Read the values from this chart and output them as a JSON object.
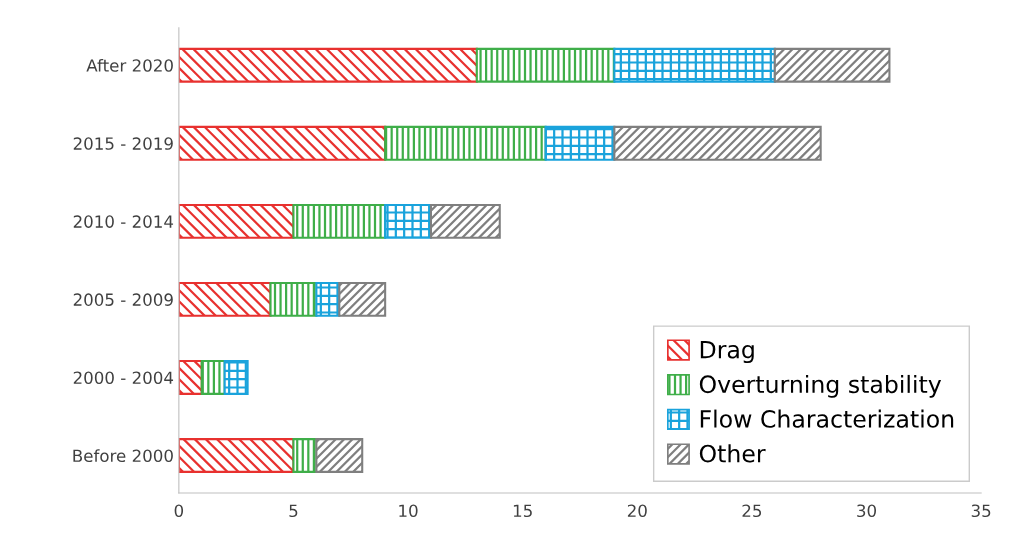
{
  "chart_data": {
    "type": "bar",
    "orientation": "horizontal",
    "stacked": true,
    "categories": [
      "After 2020",
      "2015 - 2019",
      "2010 - 2014",
      "2005 - 2009",
      "2000 - 2004",
      "Before 2000"
    ],
    "series": [
      {
        "name": "Drag",
        "color": "#e8312f",
        "values": [
          13,
          9,
          5,
          4,
          1,
          5
        ]
      },
      {
        "name": "Overturning stability",
        "color": "#3fae49",
        "values": [
          6,
          7,
          4,
          2,
          1,
          1
        ]
      },
      {
        "name": "Flow Characterization",
        "color": "#1aa3dc",
        "values": [
          7,
          3,
          2,
          1,
          1,
          0
        ]
      },
      {
        "name": "Other",
        "color": "#7f7f7f",
        "values": [
          5,
          9,
          3,
          2,
          0,
          2
        ]
      }
    ],
    "xlim": [
      0,
      35
    ],
    "xticks": [
      0,
      5,
      10,
      15,
      20,
      25,
      30,
      35
    ],
    "grid": false,
    "legend": "bottom right"
  }
}
